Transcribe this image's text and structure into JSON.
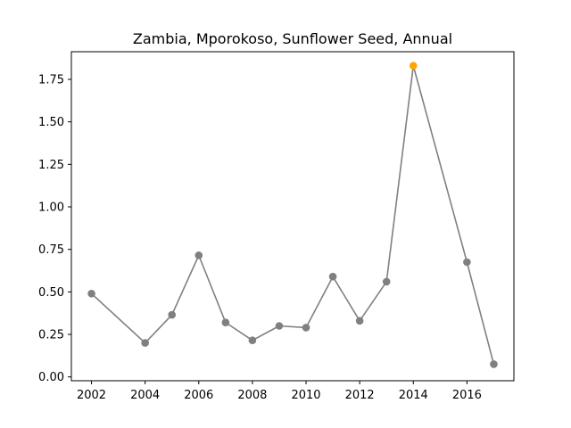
{
  "chart_data": {
    "type": "line",
    "title": "Zambia, Mporokoso, Sunflower Seed, Annual",
    "xlabel": "",
    "ylabel": "",
    "x": [
      2002,
      2004,
      2005,
      2006,
      2007,
      2008,
      2009,
      2010,
      2011,
      2012,
      2013,
      2014,
      2016,
      2017
    ],
    "series": [
      {
        "values": [
          0.49,
          0.2,
          0.365,
          0.715,
          0.32,
          0.215,
          0.3,
          0.29,
          0.59,
          0.33,
          0.56,
          1.83,
          0.675,
          0.075
        ],
        "color": "#808080"
      }
    ],
    "highlight": {
      "x": 2014,
      "y": 1.83,
      "color": "#ffa500"
    },
    "xticks": [
      2002,
      2004,
      2006,
      2008,
      2010,
      2012,
      2014,
      2016
    ],
    "xtick_labels": [
      "2002",
      "2004",
      "2006",
      "2008",
      "2010",
      "2012",
      "2014",
      "2016"
    ],
    "yticks": [
      0.0,
      0.25,
      0.5,
      0.75,
      1.0,
      1.25,
      1.5,
      1.75
    ],
    "ytick_labels": [
      "0.00",
      "0.25",
      "0.50",
      "0.75",
      "1.00",
      "1.25",
      "1.50",
      "1.75"
    ],
    "xlim": [
      2001.25,
      2017.75
    ],
    "ylim": [
      -0.0225,
      1.9125
    ],
    "grid": false,
    "legend": "none"
  }
}
